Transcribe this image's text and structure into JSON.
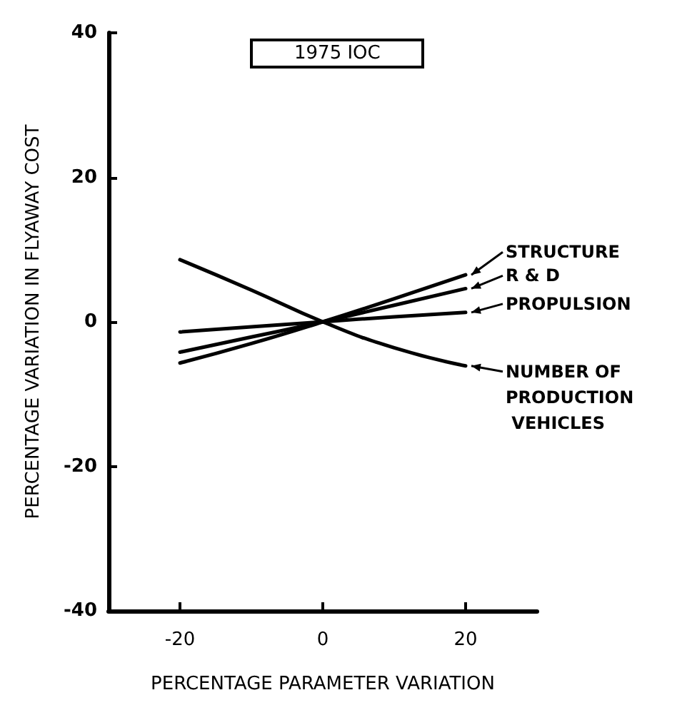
{
  "chart_data": {
    "type": "line",
    "title": "1975 IOC",
    "xlabel": "PERCENTAGE PARAMETER VARIATION",
    "ylabel": "PERCENTAGE VARIATION IN FLYAWAY COST",
    "x": [
      -20,
      -10,
      0,
      10,
      20
    ],
    "series": [
      {
        "name": "STRUCTURE",
        "color": "#000000",
        "values": [
          -5.7,
          -3,
          0,
          3.2,
          6.5
        ]
      },
      {
        "name": "R & D",
        "color": "#000000",
        "values": [
          -4.2,
          -2.1,
          0,
          2.3,
          4.6
        ]
      },
      {
        "name": "PROPULSION",
        "color": "#000000",
        "values": [
          -1.4,
          -0.7,
          0,
          0.7,
          1.3
        ]
      },
      {
        "name": "NUMBER OF PRODUCTION VEHICLES",
        "color": "#000000",
        "values": [
          8.6,
          4.4,
          0,
          -3.6,
          -6.1
        ]
      }
    ],
    "xlim": [
      -30,
      30
    ],
    "xticks": [
      -20,
      0,
      20
    ],
    "ylim": [
      -40,
      40
    ],
    "yticks": [
      -40,
      -20,
      0,
      20,
      40
    ],
    "grid": false,
    "legend": "right",
    "marker": "none",
    "line_style": "solid"
  }
}
